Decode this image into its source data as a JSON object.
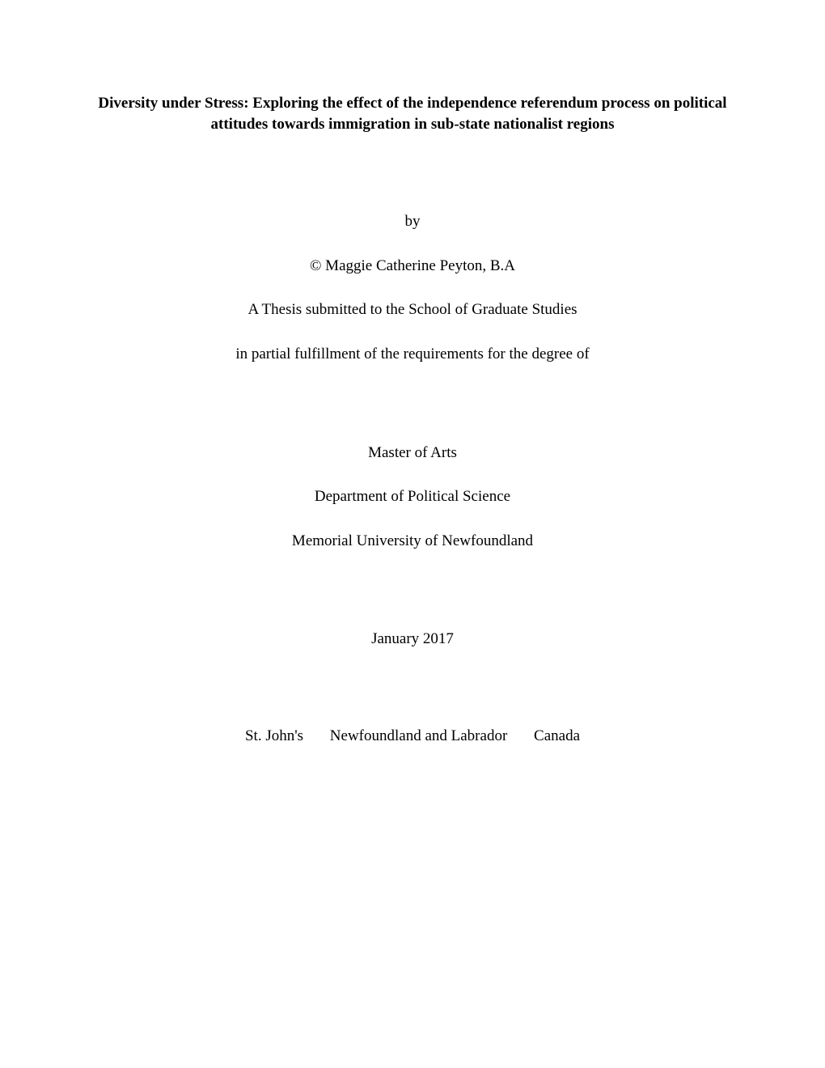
{
  "title": "Diversity under Stress: Exploring the effect of the independence referendum process on political attitudes towards immigration in sub-state nationalist regions",
  "by": "by",
  "author": "© Maggie Catherine Peyton, B.A",
  "thesis_line": "A Thesis submitted to the School of Graduate Studies",
  "fulfillment": "in partial fulfillment of the requirements for the degree of",
  "degree": "Master of Arts",
  "department": "Department of Political Science",
  "university": "Memorial University of Newfoundland",
  "date": "January 2017",
  "location": {
    "city": "St. John's",
    "province": "Newfoundland and Labrador",
    "country": "Canada"
  },
  "colors": {
    "background": "#ffffff",
    "text": "#000000"
  },
  "typography": {
    "font_family": "Times New Roman",
    "title_fontsize": 19,
    "title_weight": "bold",
    "body_fontsize": 19,
    "body_weight": "normal"
  }
}
